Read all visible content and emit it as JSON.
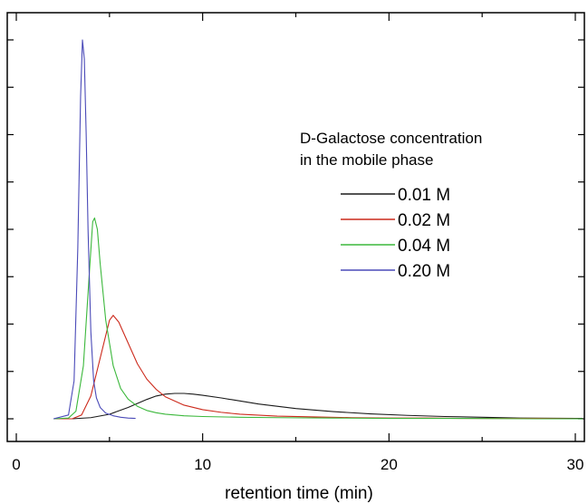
{
  "chart_data": {
    "type": "line",
    "title": "",
    "xlabel": "retention time (min)",
    "ylabel": "",
    "xlim": [
      0,
      30.4
    ],
    "ylim": [
      -0.05,
      1.0
    ],
    "y_ticks_labeled": false,
    "x_tick_labels": [
      "0",
      "10",
      "20",
      "30"
    ],
    "grid": false,
    "legend_title": [
      "D-Galactose concentration",
      "in the mobile phase"
    ],
    "legend_position": "top-right",
    "series": [
      {
        "name": "0.01 M",
        "color": "#1a1a1a",
        "x": [
          2.0,
          3.0,
          4.0,
          5.0,
          6.0,
          7.0,
          7.5,
          8.0,
          8.5,
          9.0,
          9.5,
          10.0,
          11.0,
          12.0,
          13.0,
          14.0,
          15.0,
          17.0,
          19.0,
          21.0,
          23.0,
          25.0,
          27.0,
          30.4
        ],
        "y": [
          0.0,
          0.0,
          0.003,
          0.012,
          0.03,
          0.051,
          0.06,
          0.065,
          0.067,
          0.067,
          0.065,
          0.062,
          0.055,
          0.047,
          0.039,
          0.033,
          0.027,
          0.019,
          0.013,
          0.009,
          0.006,
          0.004,
          0.002,
          0.001
        ]
      },
      {
        "name": "0.02 M",
        "color": "#cc2a1c",
        "x": [
          2.0,
          3.0,
          3.5,
          4.0,
          4.5,
          5.0,
          5.2,
          5.5,
          6.0,
          6.5,
          7.0,
          7.5,
          8.0,
          9.0,
          10.0,
          11.0,
          12.0,
          14.0,
          16.0,
          18.0,
          20.0,
          22.0,
          24.0,
          26.0,
          28.0,
          30.4
        ],
        "y": [
          0.0,
          0.0,
          0.01,
          0.06,
          0.16,
          0.26,
          0.273,
          0.255,
          0.2,
          0.145,
          0.105,
          0.078,
          0.058,
          0.036,
          0.024,
          0.017,
          0.012,
          0.007,
          0.005,
          0.003,
          0.002,
          0.002,
          0.001,
          0.001,
          0.001,
          0.0
        ]
      },
      {
        "name": "0.04 M",
        "color": "#3cb83c",
        "x": [
          2.0,
          2.8,
          3.2,
          3.6,
          3.9,
          4.1,
          4.2,
          4.35,
          4.5,
          4.8,
          5.2,
          5.6,
          6.0,
          6.5,
          7.0,
          7.5,
          8.0,
          9.0,
          10.0,
          12.0,
          14.0,
          17.0,
          20.0,
          24.0,
          28.0,
          30.4
        ],
        "y": [
          0.0,
          0.002,
          0.02,
          0.14,
          0.37,
          0.52,
          0.53,
          0.5,
          0.41,
          0.26,
          0.14,
          0.08,
          0.052,
          0.033,
          0.022,
          0.016,
          0.012,
          0.008,
          0.006,
          0.004,
          0.003,
          0.002,
          0.001,
          0.001,
          0.0,
          0.0
        ]
      },
      {
        "name": "0.20 M",
        "color": "#4a4ab8",
        "x": [
          2.0,
          2.8,
          3.1,
          3.3,
          3.45,
          3.55,
          3.65,
          3.75,
          3.85,
          4.0,
          4.15,
          4.3,
          4.5,
          4.8,
          5.2,
          5.6,
          6.0,
          6.4
        ],
        "y": [
          0.0,
          0.01,
          0.1,
          0.45,
          0.85,
          1.0,
          0.95,
          0.75,
          0.5,
          0.23,
          0.1,
          0.055,
          0.03,
          0.015,
          0.008,
          0.004,
          0.002,
          0.001
        ]
      }
    ]
  }
}
